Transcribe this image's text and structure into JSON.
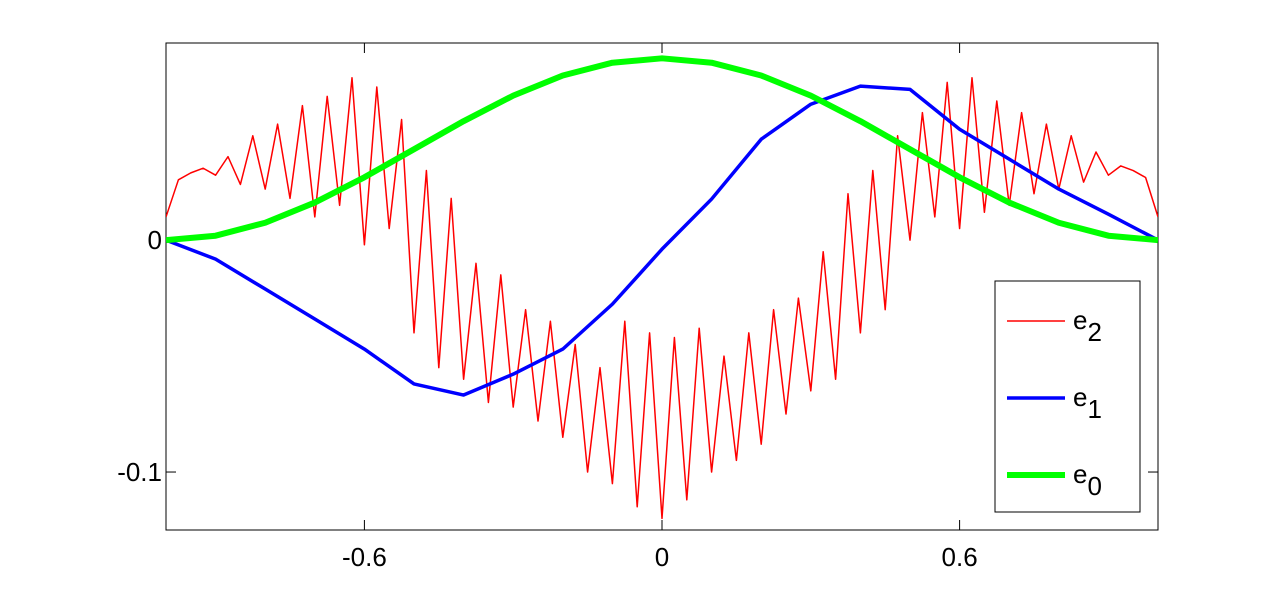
{
  "chart_data": {
    "type": "line",
    "xlim": [
      -1,
      1
    ],
    "ylim": [
      -0.125,
      0.085
    ],
    "xticks": [
      -0.6,
      0,
      0.6
    ],
    "yticks": [
      -0.1,
      0
    ],
    "legend": "lower right",
    "series": [
      {
        "name": "e2",
        "color": "#ff0000",
        "width": 1.5,
        "x": [
          -1,
          -0.975,
          -0.95,
          -0.925,
          -0.9,
          -0.875,
          -0.85,
          -0.825,
          -0.8,
          -0.775,
          -0.75,
          -0.725,
          -0.7,
          -0.675,
          -0.65,
          -0.625,
          -0.6,
          -0.575,
          -0.55,
          -0.525,
          -0.5,
          -0.475,
          -0.45,
          -0.425,
          -0.4,
          -0.375,
          -0.35,
          -0.325,
          -0.3,
          -0.275,
          -0.25,
          -0.225,
          -0.2,
          -0.175,
          -0.15,
          -0.125,
          -0.1,
          -0.075,
          -0.05,
          -0.025,
          0,
          0.025,
          0.05,
          0.075,
          0.1,
          0.125,
          0.15,
          0.175,
          0.2,
          0.225,
          0.25,
          0.275,
          0.3,
          0.325,
          0.35,
          0.375,
          0.4,
          0.425,
          0.45,
          0.475,
          0.5,
          0.525,
          0.55,
          0.575,
          0.6,
          0.625,
          0.65,
          0.675,
          0.7,
          0.725,
          0.75,
          0.775,
          0.8,
          0.825,
          0.85,
          0.875,
          0.9,
          0.925,
          0.95,
          0.975,
          1
        ],
        "values": [
          0.01,
          0.026,
          0.029,
          0.031,
          0.028,
          0.036,
          0.024,
          0.045,
          0.022,
          0.05,
          0.018,
          0.058,
          0.01,
          0.062,
          0.015,
          0.07,
          -0.002,
          0.066,
          0.005,
          0.052,
          -0.04,
          0.03,
          -0.055,
          0.018,
          -0.06,
          -0.01,
          -0.07,
          -0.015,
          -0.072,
          -0.03,
          -0.078,
          -0.035,
          -0.085,
          -0.045,
          -0.1,
          -0.055,
          -0.105,
          -0.035,
          -0.115,
          -0.04,
          -0.12,
          -0.042,
          -0.112,
          -0.038,
          -0.1,
          -0.05,
          -0.095,
          -0.04,
          -0.088,
          -0.03,
          -0.075,
          -0.025,
          -0.065,
          -0.005,
          -0.06,
          0.02,
          -0.04,
          0.03,
          -0.03,
          0.045,
          0.0,
          0.055,
          0.01,
          0.068,
          0.005,
          0.07,
          0.012,
          0.06,
          0.015,
          0.055,
          0.02,
          0.05,
          0.022,
          0.045,
          0.025,
          0.038,
          0.028,
          0.032,
          0.03,
          0.027,
          0.01
        ]
      },
      {
        "name": "e1",
        "color": "#0000ff",
        "width": 3.5,
        "x": [
          -1,
          -0.9,
          -0.8,
          -0.7,
          -0.6,
          -0.5,
          -0.4,
          -0.3,
          -0.2,
          -0.1,
          0,
          0.1,
          0.2,
          0.3,
          0.4,
          0.5,
          0.6,
          0.7,
          0.8,
          0.9,
          1
        ],
        "values": [
          0,
          -0.0082,
          -0.0211,
          -0.034,
          -0.047,
          -0.062,
          -0.0668,
          -0.0578,
          -0.047,
          -0.0276,
          -0.0039,
          0.0177,
          0.0435,
          0.0586,
          0.0664,
          0.065,
          0.0478,
          0.0349,
          0.022,
          0.0112,
          0
        ]
      },
      {
        "name": "e0",
        "color": "#00ff00",
        "width": 6,
        "x": [
          -1,
          -0.9,
          -0.8,
          -0.7,
          -0.6,
          -0.5,
          -0.4,
          -0.3,
          -0.2,
          -0.1,
          0,
          0.1,
          0.2,
          0.3,
          0.4,
          0.5,
          0.6,
          0.7,
          0.8,
          0.9,
          1
        ],
        "values": [
          0,
          0.0019,
          0.0075,
          0.0162,
          0.0271,
          0.0392,
          0.0513,
          0.0623,
          0.071,
          0.0765,
          0.0784,
          0.0765,
          0.071,
          0.0623,
          0.0513,
          0.0392,
          0.0271,
          0.0162,
          0.0075,
          0.0019,
          0
        ]
      }
    ]
  }
}
